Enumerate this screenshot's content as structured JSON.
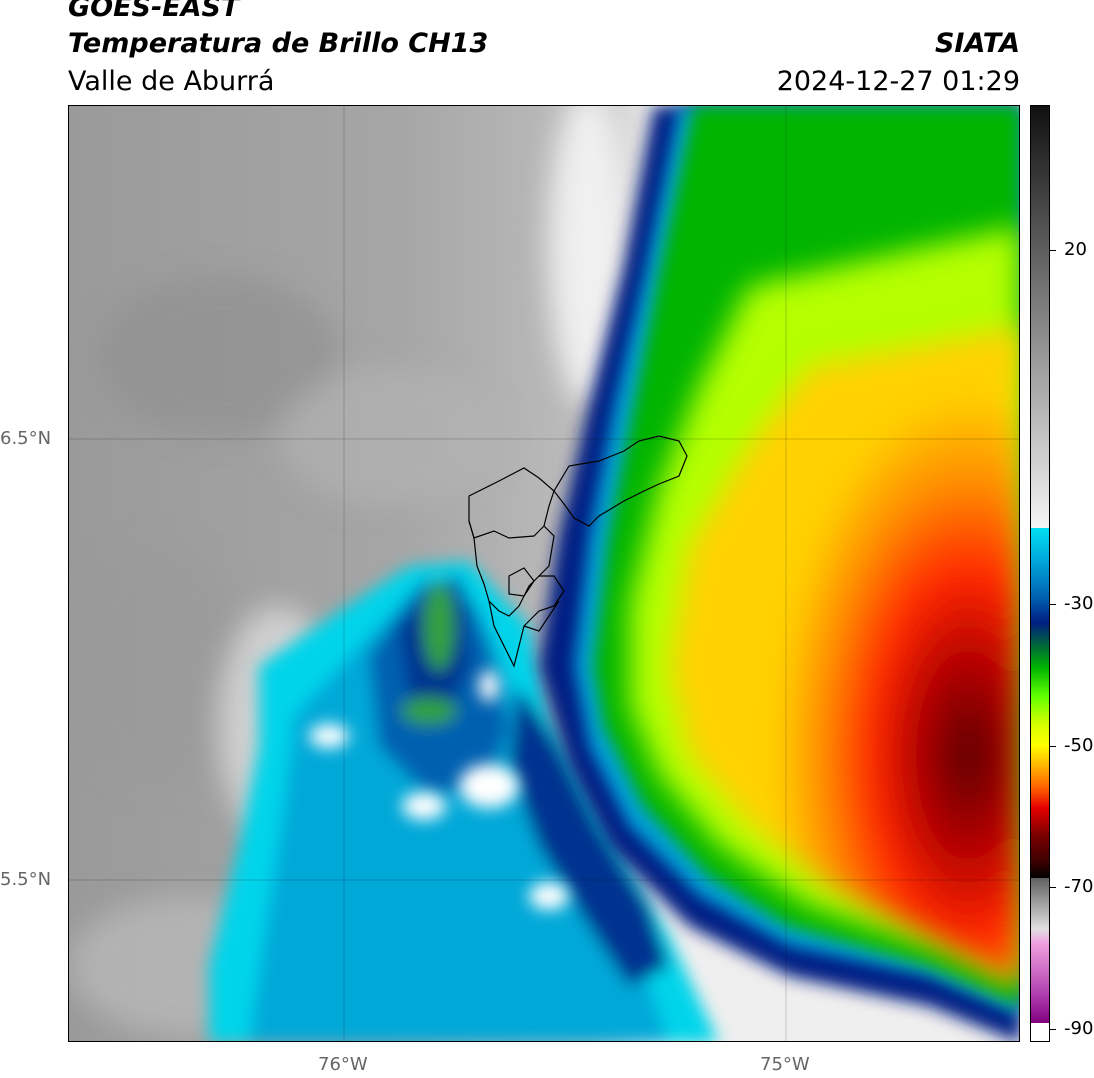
{
  "header": {
    "satellite": "GOES-EAST",
    "product": "Temperatura de Brillo CH13",
    "region": "Valle de Aburrá",
    "agency": "SIATA",
    "datetime": "2024-12-27 01:29"
  },
  "map": {
    "lat_labels": [
      "6.5°N",
      "5.5°N"
    ],
    "lon_labels": [
      "76°W",
      "75°W"
    ]
  },
  "colorbar": {
    "tick_labels": [
      "20",
      "-30",
      "-50",
      "-70",
      "-90"
    ],
    "palette": {
      "gray_dark": "#2a2a2a",
      "gray_light": "#f2f2f2",
      "cyan": "#00e0f0",
      "blue_dark": "#001e82",
      "green": "#00b400",
      "yellow": "#ffff00",
      "orange": "#ff8c00",
      "red": "#e60000",
      "maroon": "#5a0000",
      "magenta": "#c040c0"
    }
  }
}
